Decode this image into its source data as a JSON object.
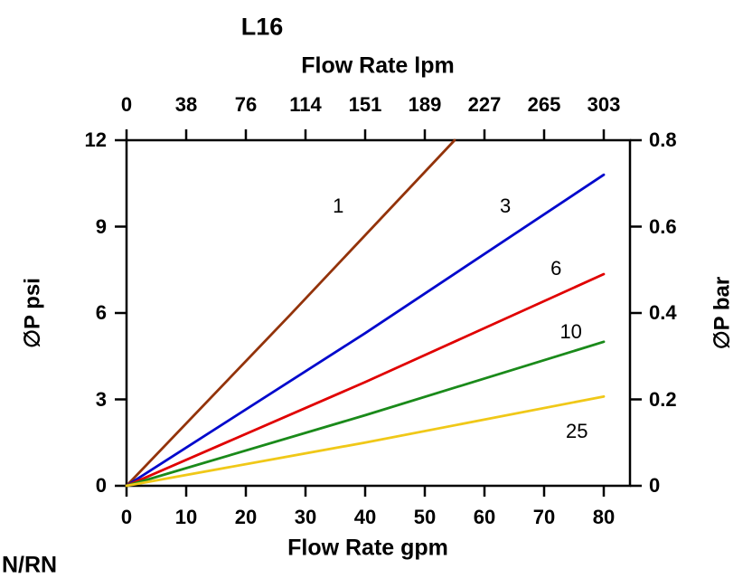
{
  "chart_data": {
    "type": "line",
    "title": "L16",
    "grid": false,
    "legend": "inline curve labels",
    "top_axis": {
      "label": "Flow Rate lpm",
      "ticks": [
        0,
        38,
        76,
        114,
        151,
        189,
        227,
        265,
        303
      ]
    },
    "bottom_axis": {
      "label": "Flow Rate gpm",
      "ticks": [
        0,
        10,
        20,
        30,
        40,
        50,
        60,
        70,
        80
      ],
      "range": [
        0,
        84
      ]
    },
    "left_axis": {
      "label": "∅P psi",
      "ticks": [
        0,
        3,
        6,
        9,
        12
      ],
      "range": [
        0,
        12
      ]
    },
    "right_axis": {
      "label": "∅P bar",
      "ticks": [
        0,
        0.2,
        0.4,
        0.6,
        0.8
      ],
      "range": [
        0,
        0.8
      ]
    },
    "series": [
      {
        "name": "1",
        "color": "#93330a",
        "points": [
          [
            0,
            0
          ],
          [
            27.5,
            5.95
          ],
          [
            55,
            12.0
          ]
        ],
        "label_pos": [
          35.5,
          9.7
        ]
      },
      {
        "name": "3",
        "color": "#0008cc",
        "points": [
          [
            0,
            0
          ],
          [
            40,
            5.3
          ],
          [
            80,
            10.8
          ]
        ],
        "label_pos": [
          63.5,
          9.7
        ]
      },
      {
        "name": "6",
        "color": "#e00000",
        "points": [
          [
            0,
            0
          ],
          [
            40,
            3.6
          ],
          [
            80,
            7.35
          ]
        ],
        "label_pos": [
          72.0,
          7.55
        ]
      },
      {
        "name": "10",
        "color": "#1a8a1a",
        "points": [
          [
            0,
            0
          ],
          [
            40,
            2.45
          ],
          [
            80,
            5.0
          ]
        ],
        "label_pos": [
          74.5,
          5.35
        ]
      },
      {
        "name": "25",
        "color": "#f0c818",
        "points": [
          [
            0,
            0
          ],
          [
            40,
            1.5
          ],
          [
            80,
            3.1
          ]
        ],
        "label_pos": [
          75.5,
          1.9
        ]
      }
    ]
  },
  "footer": {
    "label": "N/RN"
  }
}
